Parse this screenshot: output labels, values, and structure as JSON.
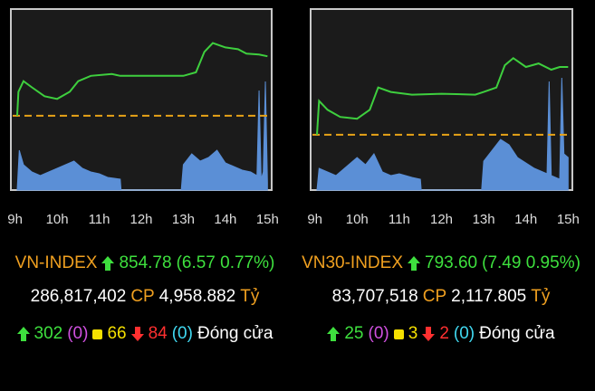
{
  "chart_data": [
    {
      "type": "line",
      "line_color": "#3ecf3e",
      "reference_color": "#e8a317",
      "volume_color": "#5b8fd6",
      "xlim": [
        8.9,
        15.1
      ],
      "ylim": [
        840,
        860
      ],
      "y2lim": [
        0,
        100
      ],
      "xticks": [
        {
          "value": 9,
          "label": "9h"
        },
        {
          "value": 10,
          "label": "10h"
        },
        {
          "value": 11,
          "label": "11h"
        },
        {
          "value": 12,
          "label": "12h"
        },
        {
          "value": 13,
          "label": "13h"
        },
        {
          "value": 14,
          "label": "14h"
        },
        {
          "value": 15,
          "label": "15h"
        }
      ],
      "reference": 848.21,
      "x": [
        9.05,
        9.08,
        9.2,
        9.4,
        9.7,
        10,
        10.3,
        10.5,
        10.8,
        11.3,
        11.5,
        12.5,
        13,
        13.3,
        13.5,
        13.7,
        14,
        14.3,
        14.5,
        14.8,
        15
      ],
      "values": [
        848.21,
        850.86,
        852.03,
        851.35,
        850.37,
        850.07,
        850.86,
        852.03,
        852.62,
        852.82,
        852.62,
        852.62,
        852.62,
        853.01,
        855.27,
        856.25,
        855.76,
        855.56,
        855.07,
        854.97,
        854.78
      ],
      "volume_series": {
        "axis": "y2",
        "x": [
          9.05,
          9.1,
          9.2,
          9.4,
          9.6,
          9.8,
          10,
          10.2,
          10.4,
          10.6,
          10.8,
          11,
          11.2,
          11.5,
          11.52,
          12.95,
          13,
          13.2,
          13.4,
          13.6,
          13.8,
          14,
          14.2,
          14.4,
          14.6,
          14.75,
          14.8,
          14.85,
          14.9,
          14.95,
          15
        ],
        "values": [
          0,
          22,
          14,
          10,
          8,
          10,
          12,
          14,
          16,
          12,
          10,
          9,
          7,
          6,
          0,
          0,
          14,
          20,
          16,
          18,
          22,
          15,
          13,
          11,
          10,
          8,
          55,
          6,
          10,
          60,
          4
        ]
      },
      "name": "VN-INDEX",
      "price": "854.78",
      "change": "(6.57 0.77%)",
      "shares": "286,817,402",
      "shares_unit": "CP",
      "traded": "4,958.882",
      "traded_unit": "Tỷ",
      "advances": "302",
      "ceiling": "(0)",
      "unchanged": "66",
      "declines": "84",
      "floor": "(0)",
      "status": "Đóng cửa"
    },
    {
      "type": "line",
      "line_color": "#3ecf3e",
      "reference_color": "#e8a317",
      "volume_color": "#5b8fd6",
      "xlim": [
        8.9,
        15.1
      ],
      "ylim": [
        780,
        800
      ],
      "y2lim": [
        0,
        100
      ],
      "xticks": [
        {
          "value": 9,
          "label": "9h"
        },
        {
          "value": 10,
          "label": "10h"
        },
        {
          "value": 11,
          "label": "11h"
        },
        {
          "value": 12,
          "label": "12h"
        },
        {
          "value": 13,
          "label": "13h"
        },
        {
          "value": 14,
          "label": "14h"
        },
        {
          "value": 15,
          "label": "15h"
        }
      ],
      "reference": 786.11,
      "x": [
        9.05,
        9.1,
        9.3,
        9.6,
        10,
        10.3,
        10.5,
        10.8,
        11.3,
        12,
        12.8,
        13,
        13.3,
        13.5,
        13.7,
        14,
        14.3,
        14.6,
        14.8,
        15
      ],
      "values": [
        786.11,
        789.85,
        788.87,
        788.08,
        787.88,
        788.87,
        791.33,
        790.84,
        790.54,
        790.64,
        790.54,
        790.84,
        791.33,
        793.79,
        794.58,
        793.6,
        793.99,
        793.3,
        793.6,
        793.6
      ],
      "volume_series": {
        "axis": "y2",
        "x": [
          9.05,
          9.1,
          9.3,
          9.5,
          9.7,
          10,
          10.2,
          10.4,
          10.6,
          10.8,
          11,
          11.3,
          11.5,
          11.52,
          12.95,
          13,
          13.2,
          13.4,
          13.6,
          13.8,
          14,
          14.2,
          14.4,
          14.5,
          14.55,
          14.6,
          14.8,
          14.85,
          14.9,
          15
        ],
        "values": [
          0,
          12,
          10,
          8,
          12,
          18,
          14,
          20,
          10,
          8,
          9,
          7,
          6,
          0,
          0,
          16,
          22,
          28,
          25,
          18,
          15,
          12,
          10,
          9,
          60,
          8,
          6,
          62,
          20,
          18
        ]
      },
      "name": "VN30-INDEX",
      "price": "793.60",
      "change": "(7.49 0.95%)",
      "shares": "83,707,518",
      "shares_unit": "CP",
      "traded": "2,117.805",
      "traded_unit": "Tỷ",
      "advances": "25",
      "ceiling": "(0)",
      "unchanged": "3",
      "declines": "2",
      "floor": "(0)",
      "status": "Đóng cửa"
    }
  ]
}
